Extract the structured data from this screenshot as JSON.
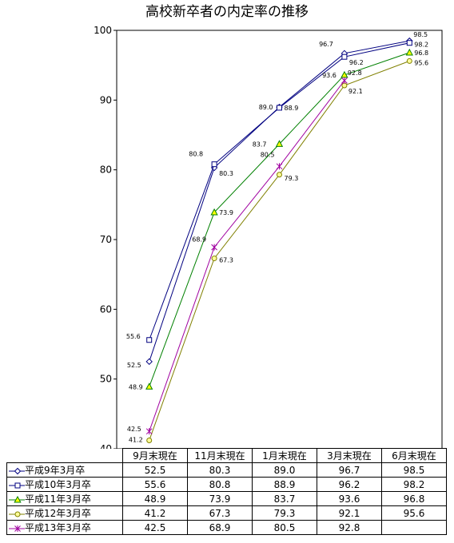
{
  "chart_data": {
    "type": "line",
    "title": "高校新卒者の内定率の推移",
    "categories": [
      "9月末現在",
      "11月末現在",
      "1月末現在",
      "3月末現在",
      "6月末現在"
    ],
    "ylim": [
      40,
      100
    ],
    "yticks": [
      40,
      50,
      60,
      70,
      80,
      90,
      100
    ],
    "grid": false,
    "legend": "table-bottom",
    "series": [
      {
        "name": "平成9年3月卒",
        "values": [
          52.5,
          80.3,
          89.0,
          96.7,
          98.5
        ],
        "labels": [
          "52.5",
          "80.3",
          "89.0",
          "96.7",
          "98.5"
        ],
        "color": "#000080",
        "marker": "diamond"
      },
      {
        "name": "平成10年3月卒",
        "values": [
          55.6,
          80.8,
          88.9,
          96.2,
          98.2
        ],
        "labels": [
          "55.6",
          "80.8",
          "88.9",
          "96.2",
          "98.2"
        ],
        "color": "#000080",
        "marker": "square"
      },
      {
        "name": "平成11年3月卒",
        "values": [
          48.9,
          73.9,
          83.7,
          93.6,
          96.8
        ],
        "labels": [
          "48.9",
          "73.9",
          "83.7",
          "93.6",
          "96.8"
        ],
        "color": "#008000",
        "marker": "triangle"
      },
      {
        "name": "平成12年3月卒",
        "values": [
          41.2,
          67.3,
          79.3,
          92.1,
          95.6
        ],
        "labels": [
          "41.2",
          "67.3",
          "79.3",
          "92.1",
          "95.6"
        ],
        "color": "#808000",
        "marker": "circle"
      },
      {
        "name": "平成13年3月卒",
        "values": [
          42.5,
          68.9,
          80.5,
          92.8,
          null
        ],
        "labels": [
          "42.5",
          "68.9",
          "80.5",
          "92.8",
          ""
        ],
        "color": "#a000a0",
        "marker": "star"
      }
    ]
  }
}
